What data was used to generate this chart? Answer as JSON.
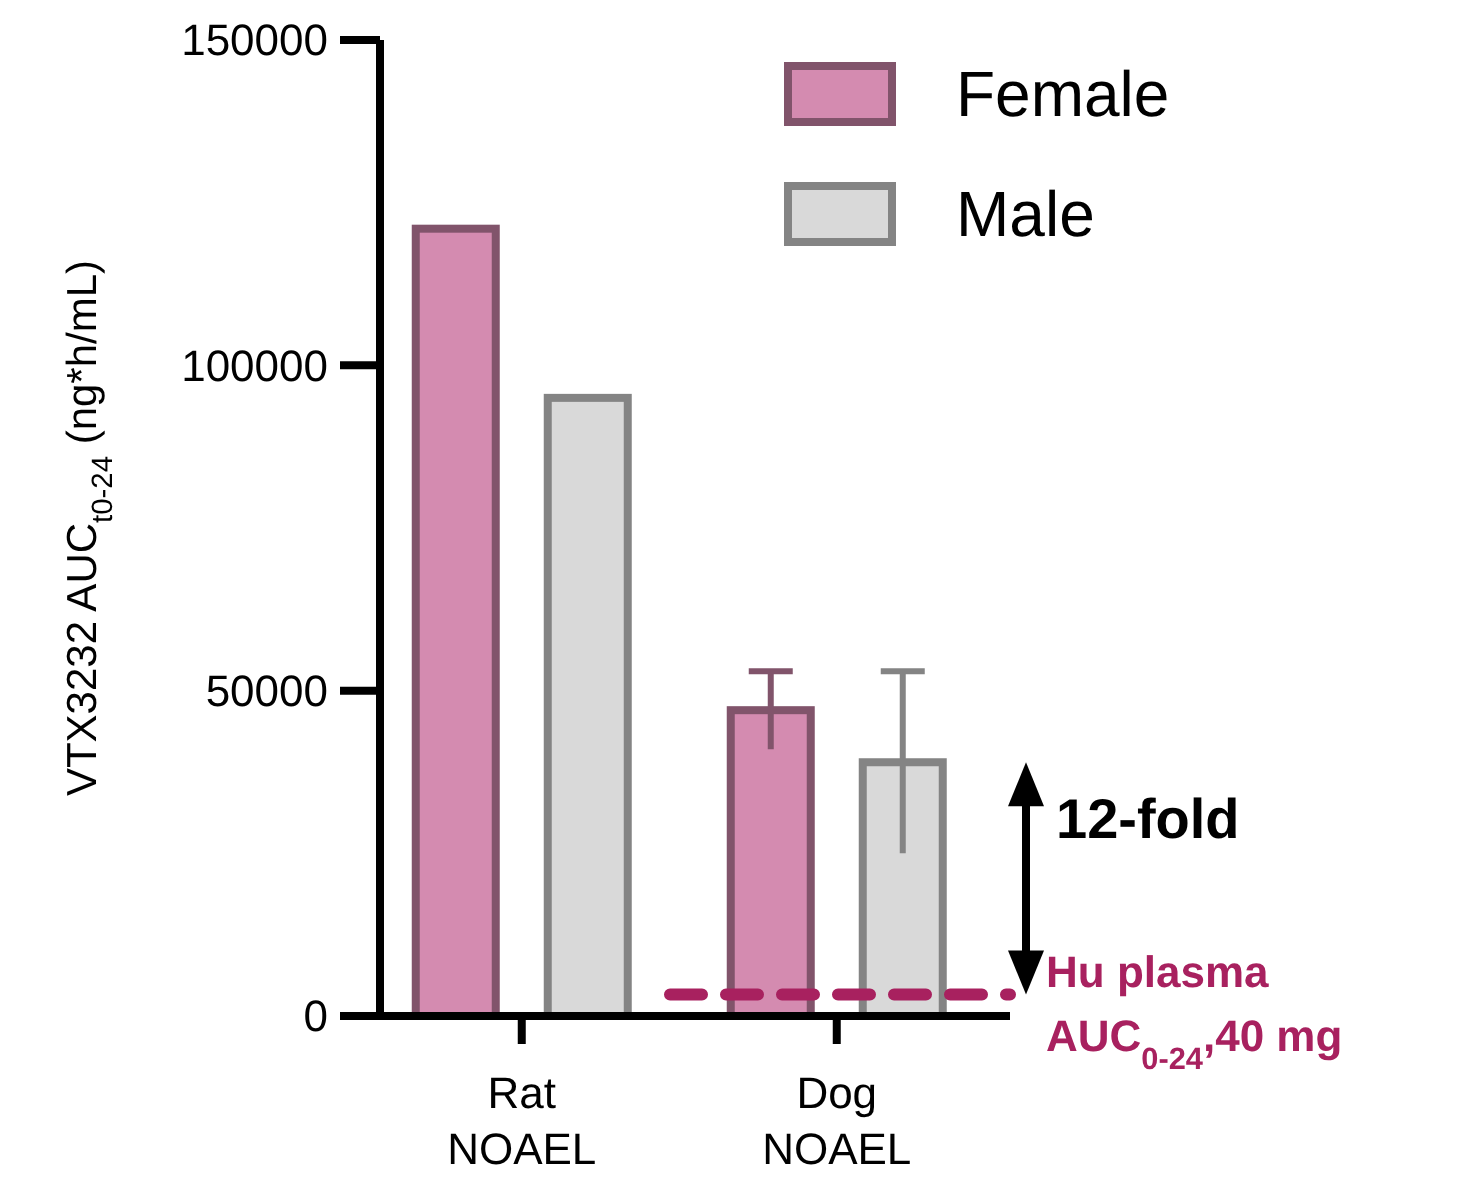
{
  "chart_data": {
    "type": "bar",
    "ylabel": "VTX3232 AUC$_{t0-24}$ (ng*h/mL)",
    "categories": [
      "Rat NOAEL",
      "Dog NOAEL"
    ],
    "series": [
      {
        "name": "Female",
        "color": "#d48bb0",
        "values": [
          121000,
          47000
        ],
        "errors": [
          null,
          6000
        ]
      },
      {
        "name": "Male",
        "color": "#d9d9d9",
        "values": [
          95000,
          39000
        ],
        "errors": [
          null,
          14000
        ]
      }
    ],
    "ylim": [
      0,
      150000
    ],
    "yticks": [
      0,
      50000,
      100000,
      150000
    ],
    "grid": false,
    "legend": "top right",
    "ref_lines": [
      {
        "axis": "y",
        "value": 3300,
        "label": "Hu plasma AUC$_{0-24}$,40 mg",
        "color": "#a8215f",
        "line_style": "dashed"
      }
    ],
    "annotations": [
      "12-fold"
    ]
  }
}
